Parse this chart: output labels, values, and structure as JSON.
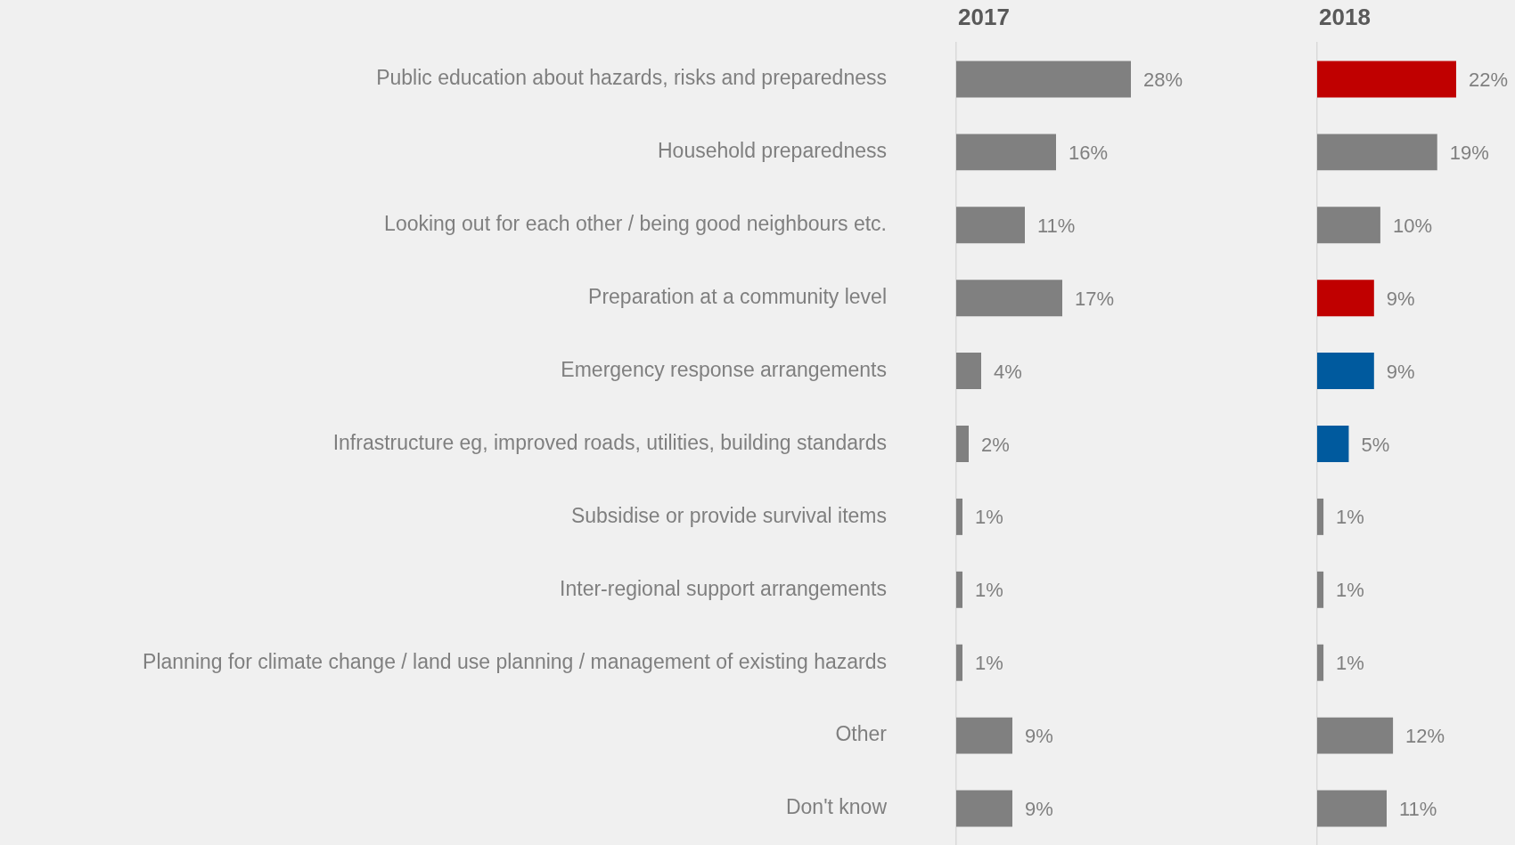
{
  "chart_data": [
    {
      "type": "bar",
      "orientation": "horizontal",
      "title": "2017",
      "tick_labels": "y",
      "grid": false,
      "legend": false,
      "categories": [
        "Public education about hazards, risks and preparedness",
        "Household preparedness",
        "Looking out for each other / being good neighbours etc.",
        "Preparation at a community level",
        "Emergency response arrangements",
        "Infrastructure eg, improved roads, utilities, building standards",
        "Subsidise or provide survival items",
        "Inter-regional support arrangements",
        "Planning for climate change / land use planning / management of existing hazards",
        "Other",
        "Don't know"
      ],
      "values": [
        28,
        16,
        11,
        17,
        4,
        2,
        1,
        1,
        1,
        9,
        9
      ],
      "value_labels": [
        "28%",
        "16%",
        "11%",
        "17%",
        "4%",
        "2%",
        "1%",
        "1%",
        "1%",
        "9%",
        "9%"
      ],
      "colors": [
        "#808080",
        "#808080",
        "#808080",
        "#808080",
        "#808080",
        "#808080",
        "#808080",
        "#808080",
        "#808080",
        "#808080",
        "#808080"
      ]
    },
    {
      "type": "bar",
      "orientation": "horizontal",
      "title": "2018",
      "tick_labels": false,
      "grid": false,
      "legend": false,
      "categories": [
        null,
        null,
        null,
        null,
        null,
        null,
        null,
        null,
        null,
        null,
        null
      ],
      "values": [
        22,
        19,
        10,
        9,
        9,
        5,
        1,
        1,
        1,
        12,
        11
      ],
      "value_labels": [
        "22%",
        "19%",
        "10%",
        "9%",
        "9%",
        "5%",
        "1%",
        "1%",
        "1%",
        "12%",
        "11%"
      ],
      "colors": [
        "#c00000",
        "#808080",
        "#808080",
        "#c00000",
        "#005a9e",
        "#005a9e",
        "#808080",
        "#808080",
        "#808080",
        "#808080",
        "#808080"
      ]
    }
  ]
}
